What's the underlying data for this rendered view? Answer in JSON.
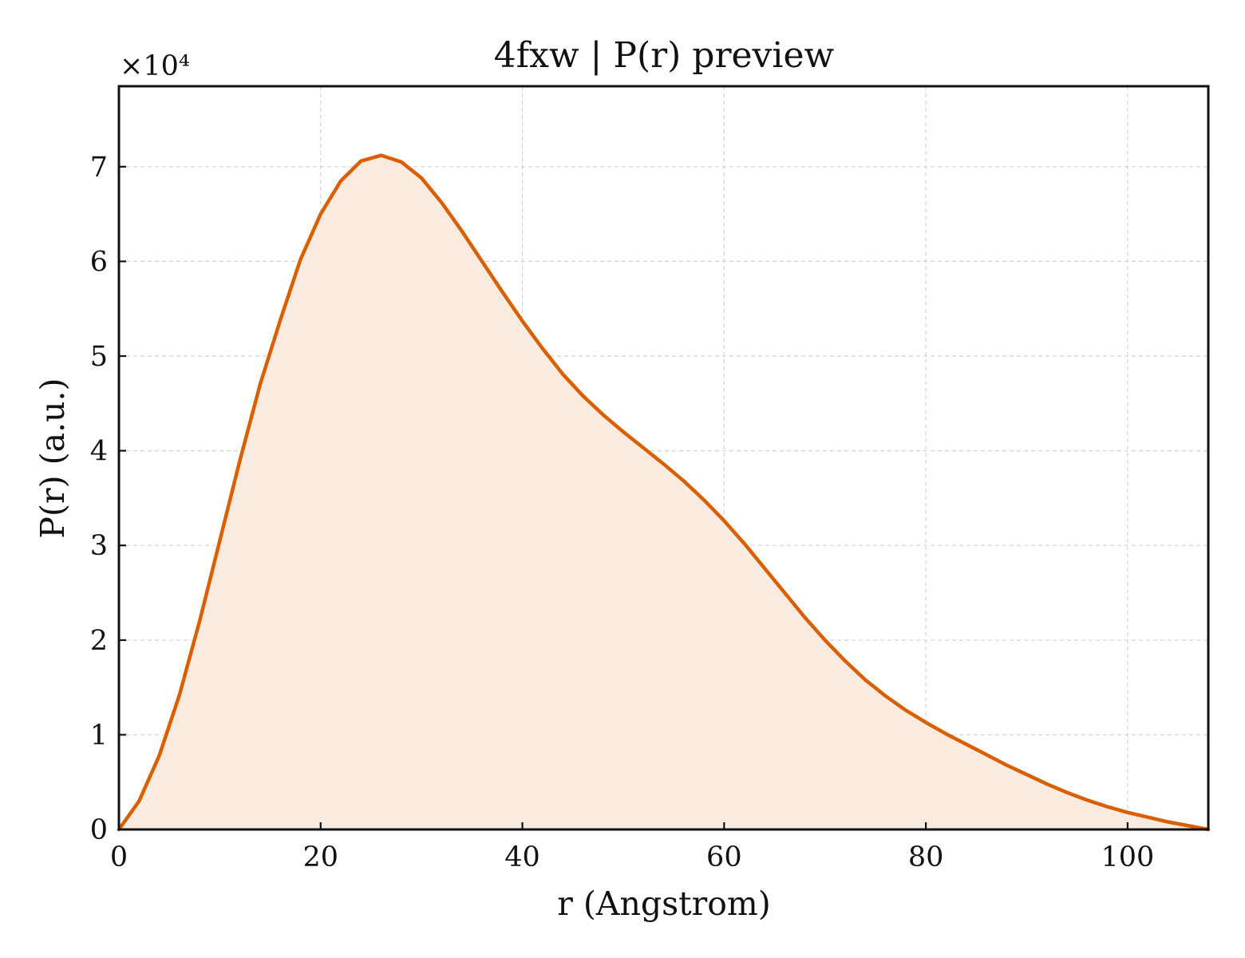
{
  "chart_data": {
    "type": "area",
    "title": "4fxw | P(r) preview",
    "xlabel": "r (Angstrom)",
    "ylabel": "P(r) (a.u.)",
    "y_multiplier_label": "×10⁴",
    "xlim": [
      0,
      108
    ],
    "ylim": [
      0,
      7.85
    ],
    "x_ticks": [
      0,
      20,
      40,
      60,
      80,
      100
    ],
    "y_ticks": [
      0,
      1,
      2,
      3,
      4,
      5,
      6,
      7
    ],
    "grid": true,
    "legend": "none",
    "line_color": "#d95f02",
    "fill_color": "#f9ebdf",
    "series": [
      {
        "x": [
          0,
          2,
          4,
          6,
          8,
          10,
          12,
          14,
          16,
          18,
          20,
          22,
          24,
          26,
          28,
          30,
          32,
          34,
          36,
          38,
          40,
          42,
          44,
          46,
          48,
          50,
          52,
          54,
          56,
          58,
          60,
          62,
          64,
          66,
          68,
          70,
          72,
          74,
          76,
          78,
          80,
          82,
          84,
          86,
          88,
          90,
          92,
          94,
          96,
          98,
          100,
          102,
          104,
          106,
          108
        ],
        "y": [
          0,
          0.3,
          0.78,
          1.42,
          2.2,
          3.05,
          3.9,
          4.7,
          5.38,
          6.02,
          6.5,
          6.85,
          7.06,
          7.12,
          7.05,
          6.88,
          6.62,
          6.32,
          6.0,
          5.68,
          5.37,
          5.08,
          4.81,
          4.58,
          4.38,
          4.2,
          4.03,
          3.86,
          3.68,
          3.48,
          3.26,
          3.02,
          2.76,
          2.5,
          2.24,
          2.0,
          1.78,
          1.58,
          1.41,
          1.26,
          1.13,
          1.01,
          0.9,
          0.79,
          0.68,
          0.58,
          0.48,
          0.39,
          0.31,
          0.24,
          0.18,
          0.13,
          0.08,
          0.04,
          0.0
        ]
      }
    ]
  }
}
